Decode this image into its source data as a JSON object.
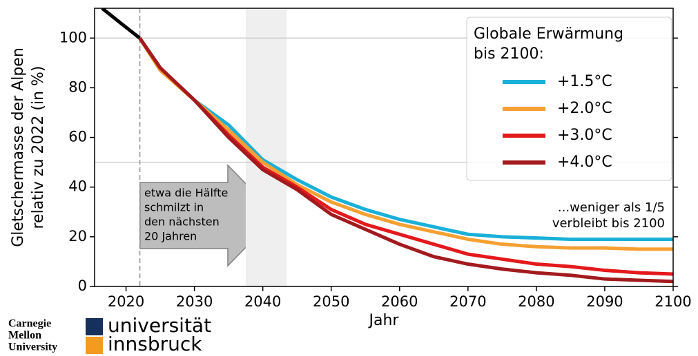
{
  "chart_data": {
    "type": "line",
    "ylabel": [
      "Gletschermasse der Alpen",
      "relativ zu 2022 (in %)"
    ],
    "xlabel": "Jahr",
    "xlim": [
      2015.4,
      2100
    ],
    "ylim": [
      0,
      112
    ],
    "xticks": [
      2020,
      2030,
      2040,
      2050,
      2060,
      2070,
      2080,
      2090,
      2100
    ],
    "yticks": [
      0,
      20,
      40,
      60,
      80,
      100
    ],
    "x": [
      2016.5,
      2019,
      2022,
      2025,
      2030,
      2035,
      2040,
      2045,
      2050,
      2055,
      2060,
      2065,
      2070,
      2075,
      2080,
      2085,
      2090,
      2095,
      2100
    ],
    "series": [
      {
        "color": "#000000",
        "values": [
          112,
          106.5,
          100,
          null,
          null,
          null,
          null,
          null,
          null,
          null,
          null,
          null,
          null,
          null,
          null,
          null,
          null,
          null,
          null
        ]
      },
      {
        "name": "+1.5°C",
        "color": "#1ab0d8",
        "values": [
          null,
          null,
          100,
          88,
          75,
          65,
          51,
          43,
          36,
          31,
          27,
          24,
          21,
          20,
          19.5,
          19,
          19,
          19,
          19
        ]
      },
      {
        "name": "+2.0°C",
        "color": "#f5a033",
        "values": [
          null,
          null,
          100,
          87,
          75,
          63,
          50,
          41,
          34,
          29,
          25,
          22,
          19,
          17,
          16,
          15.5,
          15.5,
          15,
          15
        ]
      },
      {
        "name": "+3.0°C",
        "color": "#e3191c",
        "values": [
          null,
          null,
          100,
          88,
          75,
          61,
          48,
          40,
          31,
          25,
          21,
          17,
          13,
          11,
          9,
          8,
          6.5,
          5.5,
          5
        ]
      },
      {
        "name": "+4.0°C",
        "color": "#a31a1e",
        "values": [
          null,
          null,
          100,
          88,
          75,
          60,
          47,
          39,
          29,
          23,
          17,
          12,
          9,
          7,
          5.5,
          4.5,
          3,
          2.5,
          2
        ]
      }
    ],
    "legend_title": [
      "Globale Erwärmung",
      "bis 2100:"
    ],
    "reference_year": 2022,
    "highlight_span": [
      2037.5,
      2043.5
    ],
    "reference_level": 50,
    "arrow_text": [
      "etwa die Hälfte",
      "schmilzt in",
      "den nächsten",
      "20 Jahren"
    ],
    "end_text": [
      "...weniger als 1/5",
      "verbleibt bis 2100"
    ]
  },
  "logos": {
    "cmu": [
      "Carnegie",
      "Mellon",
      "University"
    ],
    "uibk": [
      "universität",
      "innsbruck"
    ]
  }
}
